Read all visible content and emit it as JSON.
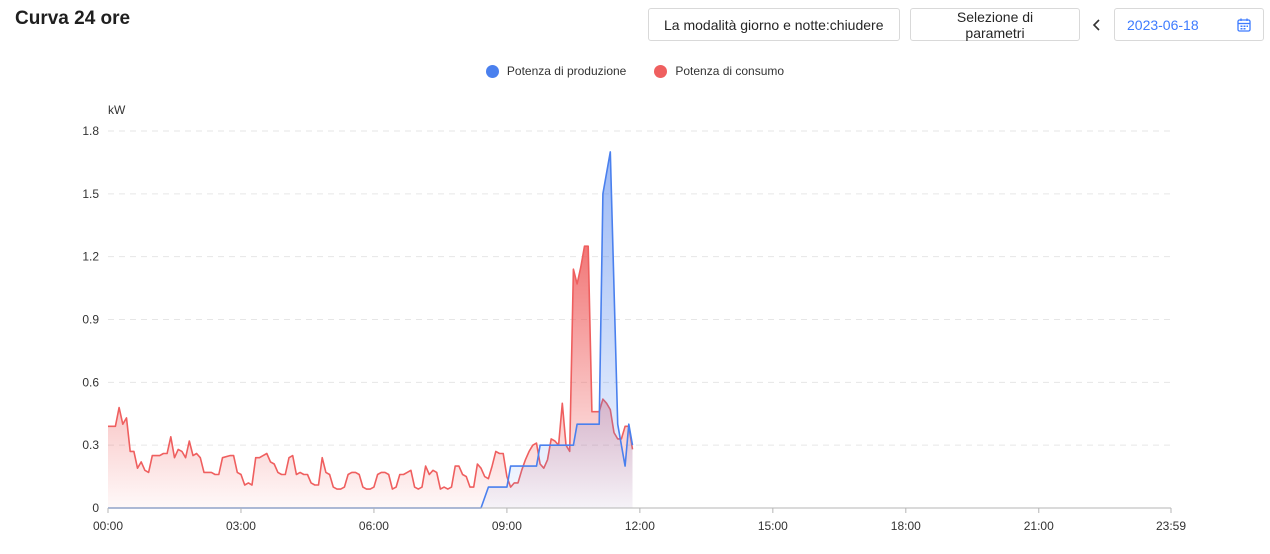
{
  "header": {
    "title": "Curva 24 ore",
    "daynight_label": "La modalità giorno e notte:chiudere",
    "params_label": "Selezione di parametri",
    "date_value": "2023-06-18"
  },
  "colors": {
    "production": "#4a80ee",
    "consumption": "#ef5f5f",
    "accent": "#3d7bff"
  },
  "icons": {
    "prev": "chevron-left-icon",
    "calendar": "calendar-icon"
  },
  "chart_data": {
    "type": "area",
    "ylabel": "kW",
    "xlabel": "",
    "yticks": [
      "0",
      "0.3",
      "0.6",
      "0.9",
      "1.2",
      "1.5",
      "1.8"
    ],
    "ylim": [
      0,
      1.8
    ],
    "xticks": [
      "00:00",
      "03:00",
      "06:00",
      "09:00",
      "12:00",
      "15:00",
      "18:00",
      "21:00",
      "23:59"
    ],
    "xlim": [
      "00:00",
      "23:59"
    ],
    "grid": "horizontal-dashed",
    "legend": "top-center",
    "series": [
      {
        "name": "Potenza di produzione",
        "points": [
          [
            "00:00",
            0
          ],
          [
            "08:25",
            0
          ],
          [
            "08:35",
            0.1
          ],
          [
            "09:00",
            0.1
          ],
          [
            "09:05",
            0.2
          ],
          [
            "09:40",
            0.2
          ],
          [
            "09:45",
            0.3
          ],
          [
            "10:30",
            0.3
          ],
          [
            "10:35",
            0.4
          ],
          [
            "11:05",
            0.4
          ],
          [
            "11:10",
            1.5
          ],
          [
            "11:20",
            1.7
          ],
          [
            "11:30",
            0.4
          ],
          [
            "11:35",
            0.3
          ],
          [
            "11:40",
            0.2
          ],
          [
            "11:45",
            0.4
          ],
          [
            "11:50",
            0.3
          ]
        ]
      },
      {
        "name": "Potenza di consumo",
        "points": [
          [
            "00:00",
            0.39
          ],
          [
            "00:10",
            0.39
          ],
          [
            "00:15",
            0.48
          ],
          [
            "00:20",
            0.4
          ],
          [
            "00:25",
            0.43
          ],
          [
            "00:30",
            0.27
          ],
          [
            "00:35",
            0.27
          ],
          [
            "00:40",
            0.19
          ],
          [
            "00:45",
            0.22
          ],
          [
            "00:50",
            0.18
          ],
          [
            "00:55",
            0.17
          ],
          [
            "01:00",
            0.25
          ],
          [
            "01:05",
            0.25
          ],
          [
            "01:10",
            0.25
          ],
          [
            "01:15",
            0.26
          ],
          [
            "01:20",
            0.26
          ],
          [
            "01:25",
            0.34
          ],
          [
            "01:30",
            0.24
          ],
          [
            "01:35",
            0.28
          ],
          [
            "01:40",
            0.27
          ],
          [
            "01:45",
            0.24
          ],
          [
            "01:50",
            0.32
          ],
          [
            "01:55",
            0.25
          ],
          [
            "02:00",
            0.26
          ],
          [
            "02:05",
            0.24
          ],
          [
            "02:10",
            0.17
          ],
          [
            "02:20",
            0.17
          ],
          [
            "02:25",
            0.16
          ],
          [
            "02:30",
            0.16
          ],
          [
            "02:35",
            0.24
          ],
          [
            "02:45",
            0.25
          ],
          [
            "02:50",
            0.25
          ],
          [
            "02:55",
            0.17
          ],
          [
            "03:00",
            0.16
          ],
          [
            "03:05",
            0.11
          ],
          [
            "03:10",
            0.12
          ],
          [
            "03:15",
            0.11
          ],
          [
            "03:20",
            0.24
          ],
          [
            "03:25",
            0.24
          ],
          [
            "03:30",
            0.25
          ],
          [
            "03:35",
            0.26
          ],
          [
            "03:40",
            0.22
          ],
          [
            "03:45",
            0.21
          ],
          [
            "03:50",
            0.17
          ],
          [
            "03:55",
            0.16
          ],
          [
            "04:00",
            0.16
          ],
          [
            "04:05",
            0.24
          ],
          [
            "04:10",
            0.25
          ],
          [
            "04:15",
            0.16
          ],
          [
            "04:20",
            0.17
          ],
          [
            "04:25",
            0.16
          ],
          [
            "04:30",
            0.16
          ],
          [
            "04:35",
            0.12
          ],
          [
            "04:40",
            0.11
          ],
          [
            "04:45",
            0.11
          ],
          [
            "04:50",
            0.24
          ],
          [
            "04:55",
            0.17
          ],
          [
            "05:00",
            0.16
          ],
          [
            "05:05",
            0.1
          ],
          [
            "05:10",
            0.09
          ],
          [
            "05:15",
            0.09
          ],
          [
            "05:20",
            0.1
          ],
          [
            "05:25",
            0.16
          ],
          [
            "05:30",
            0.17
          ],
          [
            "05:35",
            0.17
          ],
          [
            "05:40",
            0.16
          ],
          [
            "05:45",
            0.1
          ],
          [
            "05:50",
            0.09
          ],
          [
            "05:55",
            0.09
          ],
          [
            "06:00",
            0.1
          ],
          [
            "06:05",
            0.16
          ],
          [
            "06:10",
            0.17
          ],
          [
            "06:15",
            0.17
          ],
          [
            "06:20",
            0.16
          ],
          [
            "06:25",
            0.09
          ],
          [
            "06:30",
            0.1
          ],
          [
            "06:35",
            0.16
          ],
          [
            "06:40",
            0.16
          ],
          [
            "06:45",
            0.17
          ],
          [
            "06:50",
            0.18
          ],
          [
            "06:55",
            0.1
          ],
          [
            "07:00",
            0.09
          ],
          [
            "07:05",
            0.1
          ],
          [
            "07:10",
            0.2
          ],
          [
            "07:15",
            0.16
          ],
          [
            "07:20",
            0.18
          ],
          [
            "07:25",
            0.17
          ],
          [
            "07:30",
            0.09
          ],
          [
            "07:35",
            0.1
          ],
          [
            "07:40",
            0.09
          ],
          [
            "07:45",
            0.1
          ],
          [
            "07:50",
            0.2
          ],
          [
            "07:55",
            0.2
          ],
          [
            "08:00",
            0.16
          ],
          [
            "08:05",
            0.15
          ],
          [
            "08:10",
            0.1
          ],
          [
            "08:15",
            0.1
          ],
          [
            "08:20",
            0.21
          ],
          [
            "08:25",
            0.19
          ],
          [
            "08:30",
            0.15
          ],
          [
            "08:35",
            0.14
          ],
          [
            "08:40",
            0.2
          ],
          [
            "08:45",
            0.27
          ],
          [
            "08:50",
            0.26
          ],
          [
            "08:55",
            0.26
          ],
          [
            "09:00",
            0.15
          ],
          [
            "09:05",
            0.1
          ],
          [
            "09:10",
            0.12
          ],
          [
            "09:15",
            0.12
          ],
          [
            "09:20",
            0.18
          ],
          [
            "09:25",
            0.23
          ],
          [
            "09:30",
            0.27
          ],
          [
            "09:35",
            0.3
          ],
          [
            "09:40",
            0.31
          ],
          [
            "09:45",
            0.21
          ],
          [
            "09:50",
            0.19
          ],
          [
            "09:55",
            0.23
          ],
          [
            "10:00",
            0.33
          ],
          [
            "10:05",
            0.32
          ],
          [
            "10:10",
            0.3
          ],
          [
            "10:15",
            0.5
          ],
          [
            "10:20",
            0.3
          ],
          [
            "10:25",
            0.27
          ],
          [
            "10:30",
            1.14
          ],
          [
            "10:35",
            1.07
          ],
          [
            "10:40",
            1.15
          ],
          [
            "10:45",
            1.25
          ],
          [
            "10:50",
            1.25
          ],
          [
            "10:55",
            0.46
          ],
          [
            "11:00",
            0.46
          ],
          [
            "11:05",
            0.46
          ],
          [
            "11:10",
            0.52
          ],
          [
            "11:15",
            0.5
          ],
          [
            "11:20",
            0.47
          ],
          [
            "11:25",
            0.36
          ],
          [
            "11:30",
            0.33
          ],
          [
            "11:35",
            0.33
          ],
          [
            "11:40",
            0.39
          ],
          [
            "11:45",
            0.39
          ],
          [
            "11:50",
            0.28
          ]
        ]
      }
    ]
  }
}
